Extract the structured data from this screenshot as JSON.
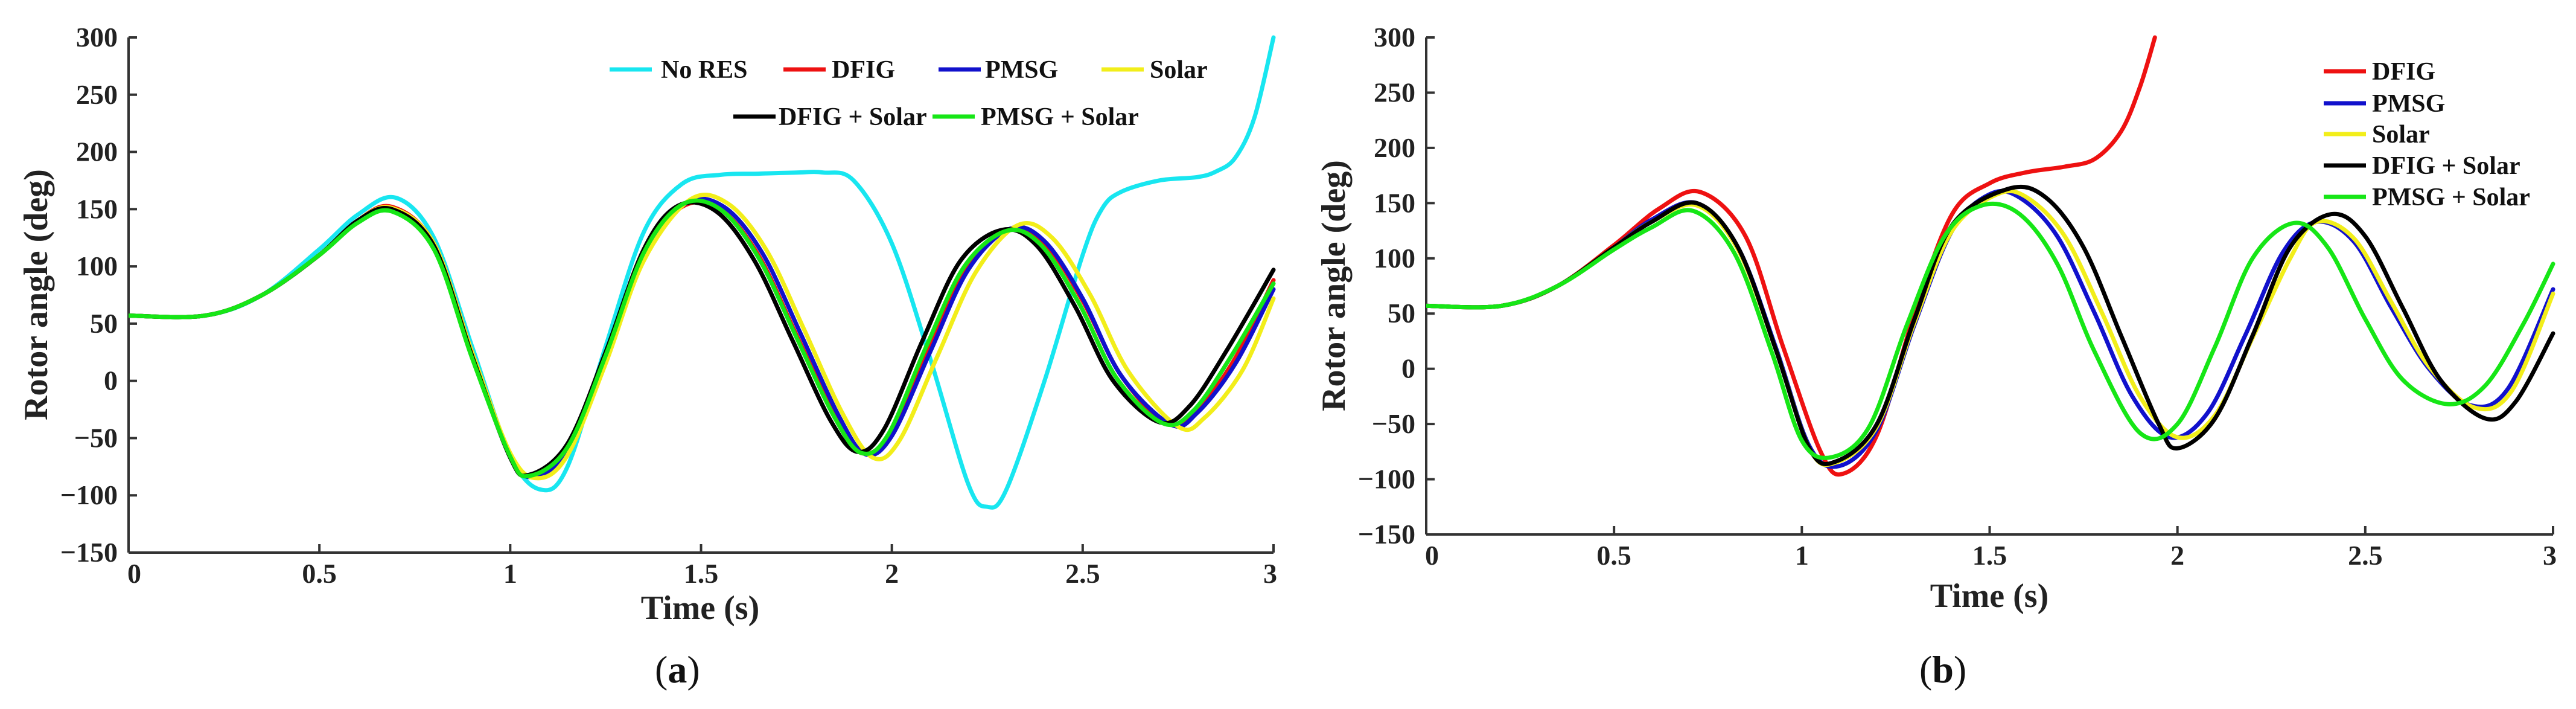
{
  "colors": {
    "No RES": "#18E6F0",
    "DFIG": "#EE1111",
    "PMSG": "#1111CC",
    "Solar": "#F2EE1A",
    "DFIG + Solar": "#000000",
    "PMSG + Solar": "#16E616"
  },
  "chart_data": [
    {
      "type": "line",
      "panel_label": "a",
      "xlabel": "Time (s)",
      "ylabel": "Rotor angle (deg)",
      "xlim": [
        0,
        3
      ],
      "ylim": [
        -150,
        300
      ],
      "xticks": [
        0,
        0.5,
        1,
        1.5,
        2,
        2.5,
        3
      ],
      "xtick_labels": [
        "0",
        "0.5",
        "1",
        "1.5",
        "2",
        "2.5",
        "3"
      ],
      "yticks": [
        -150,
        -100,
        -50,
        0,
        50,
        100,
        150,
        200,
        250,
        300
      ],
      "ytick_labels": [
        "−150",
        "−100",
        "−50",
        "0",
        "50",
        "100",
        "150",
        "200",
        "250",
        "300"
      ],
      "legend_rows": [
        [
          "No RES",
          "DFIG",
          "PMSG",
          "Solar"
        ],
        [
          "DFIG + Solar",
          "PMSG + Solar"
        ]
      ],
      "series": [
        {
          "name": "No RES",
          "x": [
            0,
            0.2,
            0.35,
            0.5,
            0.6,
            0.7,
            0.8,
            0.9,
            1.0,
            1.08,
            1.15,
            1.25,
            1.35,
            1.45,
            1.55,
            1.65,
            1.75,
            1.82,
            1.9,
            2.0,
            2.1,
            2.2,
            2.25,
            2.3,
            2.4,
            2.5,
            2.55,
            2.6,
            2.7,
            2.8,
            2.85,
            2.9,
            2.95,
            3.0
          ],
          "y": [
            57,
            57,
            75,
            115,
            145,
            160,
            125,
            30,
            -65,
            -95,
            -75,
            30,
            130,
            172,
            180,
            181,
            182,
            182,
            175,
            120,
            20,
            -90,
            -110,
            -95,
            0,
            110,
            150,
            165,
            175,
            178,
            183,
            195,
            230,
            300
          ]
        },
        {
          "name": "DFIG",
          "x": [
            0,
            0.2,
            0.35,
            0.5,
            0.6,
            0.69,
            0.8,
            0.9,
            1.0,
            1.06,
            1.15,
            1.25,
            1.35,
            1.45,
            1.55,
            1.65,
            1.75,
            1.85,
            1.92,
            2.0,
            2.1,
            2.2,
            2.3,
            2.4,
            2.5,
            2.6,
            2.72,
            2.8,
            2.9,
            3.0
          ],
          "y": [
            57,
            57,
            75,
            110,
            140,
            152,
            120,
            25,
            -65,
            -83,
            -60,
            20,
            110,
            152,
            150,
            110,
            40,
            -30,
            -63,
            -45,
            30,
            100,
            132,
            120,
            70,
            5,
            -37,
            -25,
            20,
            88
          ]
        },
        {
          "name": "PMSG",
          "x": [
            0,
            0.2,
            0.35,
            0.5,
            0.6,
            0.69,
            0.8,
            0.9,
            1.0,
            1.06,
            1.15,
            1.25,
            1.35,
            1.46,
            1.56,
            1.66,
            1.76,
            1.86,
            1.93,
            2.0,
            2.1,
            2.2,
            2.31,
            2.4,
            2.5,
            2.6,
            2.73,
            2.8,
            2.9,
            3.0
          ],
          "y": [
            57,
            57,
            75,
            110,
            140,
            150,
            118,
            23,
            -65,
            -84,
            -62,
            18,
            108,
            155,
            152,
            112,
            42,
            -30,
            -64,
            -48,
            25,
            97,
            133,
            122,
            72,
            5,
            -38,
            -28,
            15,
            80
          ]
        },
        {
          "name": "Solar",
          "x": [
            0,
            0.2,
            0.35,
            0.5,
            0.6,
            0.69,
            0.8,
            0.9,
            1.0,
            1.07,
            1.15,
            1.25,
            1.35,
            1.47,
            1.57,
            1.67,
            1.77,
            1.87,
            1.95,
            2.02,
            2.12,
            2.22,
            2.33,
            2.42,
            2.52,
            2.62,
            2.75,
            2.82,
            2.92,
            3.0
          ],
          "y": [
            57,
            57,
            75,
            110,
            140,
            151,
            120,
            25,
            -63,
            -85,
            -65,
            15,
            105,
            158,
            155,
            115,
            45,
            -28,
            -67,
            -52,
            22,
            95,
            136,
            125,
            75,
            8,
            -40,
            -32,
            10,
            72
          ]
        },
        {
          "name": "DFIG + Solar",
          "x": [
            0,
            0.2,
            0.35,
            0.5,
            0.6,
            0.69,
            0.8,
            0.9,
            1.0,
            1.05,
            1.15,
            1.25,
            1.35,
            1.44,
            1.54,
            1.64,
            1.74,
            1.84,
            1.91,
            1.98,
            2.08,
            2.18,
            2.29,
            2.38,
            2.48,
            2.58,
            2.7,
            2.78,
            2.88,
            3.0
          ],
          "y": [
            57,
            57,
            75,
            110,
            140,
            150,
            118,
            22,
            -67,
            -82,
            -55,
            25,
            115,
            153,
            148,
            105,
            35,
            -35,
            -62,
            -42,
            35,
            105,
            132,
            118,
            65,
            0,
            -36,
            -22,
            28,
            97
          ]
        },
        {
          "name": "PMSG + Solar",
          "x": [
            0,
            0.2,
            0.35,
            0.5,
            0.6,
            0.69,
            0.8,
            0.9,
            1.0,
            1.05,
            1.15,
            1.25,
            1.35,
            1.45,
            1.55,
            1.65,
            1.75,
            1.85,
            1.92,
            1.99,
            2.09,
            2.19,
            2.3,
            2.39,
            2.49,
            2.59,
            2.71,
            2.79,
            2.89,
            3.0
          ],
          "y": [
            57,
            57,
            75,
            110,
            138,
            148,
            115,
            20,
            -66,
            -83,
            -58,
            22,
            112,
            154,
            150,
            108,
            38,
            -32,
            -63,
            -47,
            30,
            100,
            131,
            119,
            68,
            2,
            -37,
            -26,
            22,
            85
          ]
        }
      ]
    },
    {
      "type": "line",
      "panel_label": "b",
      "xlabel": "Time (s)",
      "ylabel": "Rotor angle (deg)",
      "xlim": [
        0,
        3
      ],
      "ylim": [
        -150,
        300
      ],
      "xticks": [
        0,
        0.5,
        1,
        1.5,
        2,
        2.5,
        3
      ],
      "xtick_labels": [
        "0",
        "0.5",
        "1",
        "1.5",
        "2",
        "2.5",
        "3"
      ],
      "yticks": [
        -150,
        -100,
        -50,
        0,
        50,
        100,
        150,
        200,
        250,
        300
      ],
      "ytick_labels": [
        "−150",
        "−100",
        "−50",
        "0",
        "50",
        "100",
        "150",
        "200",
        "250",
        "300"
      ],
      "legend_rows": [
        [
          "DFIG"
        ],
        [
          "PMSG"
        ],
        [
          "Solar"
        ],
        [
          "DFIG + Solar"
        ],
        [
          "PMSG + Solar"
        ]
      ],
      "series": [
        {
          "name": "DFIG",
          "x": [
            0,
            0.2,
            0.35,
            0.5,
            0.62,
            0.73,
            0.85,
            0.95,
            1.05,
            1.11,
            1.2,
            1.3,
            1.4,
            1.5,
            1.6,
            1.7,
            1.78,
            1.85,
            1.9,
            1.94
          ],
          "y": [
            57,
            57,
            75,
            112,
            145,
            160,
            120,
            20,
            -75,
            -95,
            -60,
            50,
            140,
            168,
            178,
            183,
            190,
            215,
            255,
            300
          ]
        },
        {
          "name": "PMSG",
          "x": [
            0,
            0.2,
            0.35,
            0.5,
            0.6,
            0.72,
            0.83,
            0.93,
            1.02,
            1.1,
            1.2,
            1.3,
            1.4,
            1.5,
            1.58,
            1.68,
            1.78,
            1.88,
            1.98,
            2.08,
            2.18,
            2.28,
            2.37,
            2.47,
            2.57,
            2.67,
            2.78,
            2.88,
            3.0
          ],
          "y": [
            57,
            57,
            75,
            110,
            135,
            150,
            110,
            20,
            -70,
            -88,
            -55,
            40,
            125,
            158,
            155,
            120,
            50,
            -25,
            -62,
            -40,
            30,
            105,
            133,
            115,
            55,
            0,
            -33,
            -18,
            72
          ]
        },
        {
          "name": "Solar",
          "x": [
            0,
            0.2,
            0.35,
            0.5,
            0.6,
            0.72,
            0.83,
            0.93,
            1.02,
            1.09,
            1.2,
            1.3,
            1.4,
            1.52,
            1.6,
            1.7,
            1.8,
            1.9,
            2.0,
            2.1,
            2.2,
            2.3,
            2.37,
            2.47,
            2.57,
            2.67,
            2.79,
            2.89,
            3.0
          ],
          "y": [
            57,
            57,
            75,
            110,
            133,
            148,
            108,
            18,
            -72,
            -85,
            -52,
            42,
            125,
            158,
            155,
            120,
            50,
            -25,
            -62,
            -42,
            28,
            100,
            133,
            118,
            60,
            2,
            -35,
            -20,
            68
          ]
        },
        {
          "name": "DFIG + Solar",
          "x": [
            0,
            0.2,
            0.35,
            0.5,
            0.6,
            0.72,
            0.83,
            0.93,
            1.02,
            1.09,
            1.2,
            1.3,
            1.4,
            1.55,
            1.65,
            1.75,
            1.85,
            1.95,
            2.0,
            2.1,
            2.2,
            2.3,
            2.41,
            2.5,
            2.6,
            2.7,
            2.82,
            2.9,
            3.0
          ],
          "y": [
            57,
            57,
            75,
            110,
            133,
            150,
            110,
            18,
            -72,
            -84,
            -50,
            45,
            130,
            163,
            155,
            110,
            30,
            -50,
            -72,
            -45,
            30,
            110,
            140,
            120,
            55,
            -10,
            -45,
            -30,
            32
          ]
        },
        {
          "name": "PMSG + Solar",
          "x": [
            0,
            0.2,
            0.35,
            0.5,
            0.6,
            0.71,
            0.82,
            0.92,
            1.0,
            1.08,
            1.18,
            1.28,
            1.38,
            1.48,
            1.58,
            1.68,
            1.78,
            1.9,
            2.0,
            2.1,
            2.2,
            2.31,
            2.4,
            2.5,
            2.6,
            2.72,
            2.82,
            2.92,
            3.0
          ],
          "y": [
            57,
            57,
            75,
            108,
            128,
            143,
            105,
            15,
            -65,
            -80,
            -52,
            40,
            120,
            148,
            140,
            95,
            15,
            -58,
            -50,
            20,
            100,
            132,
            110,
            45,
            -10,
            -32,
            -15,
            40,
            95
          ]
        }
      ]
    }
  ]
}
